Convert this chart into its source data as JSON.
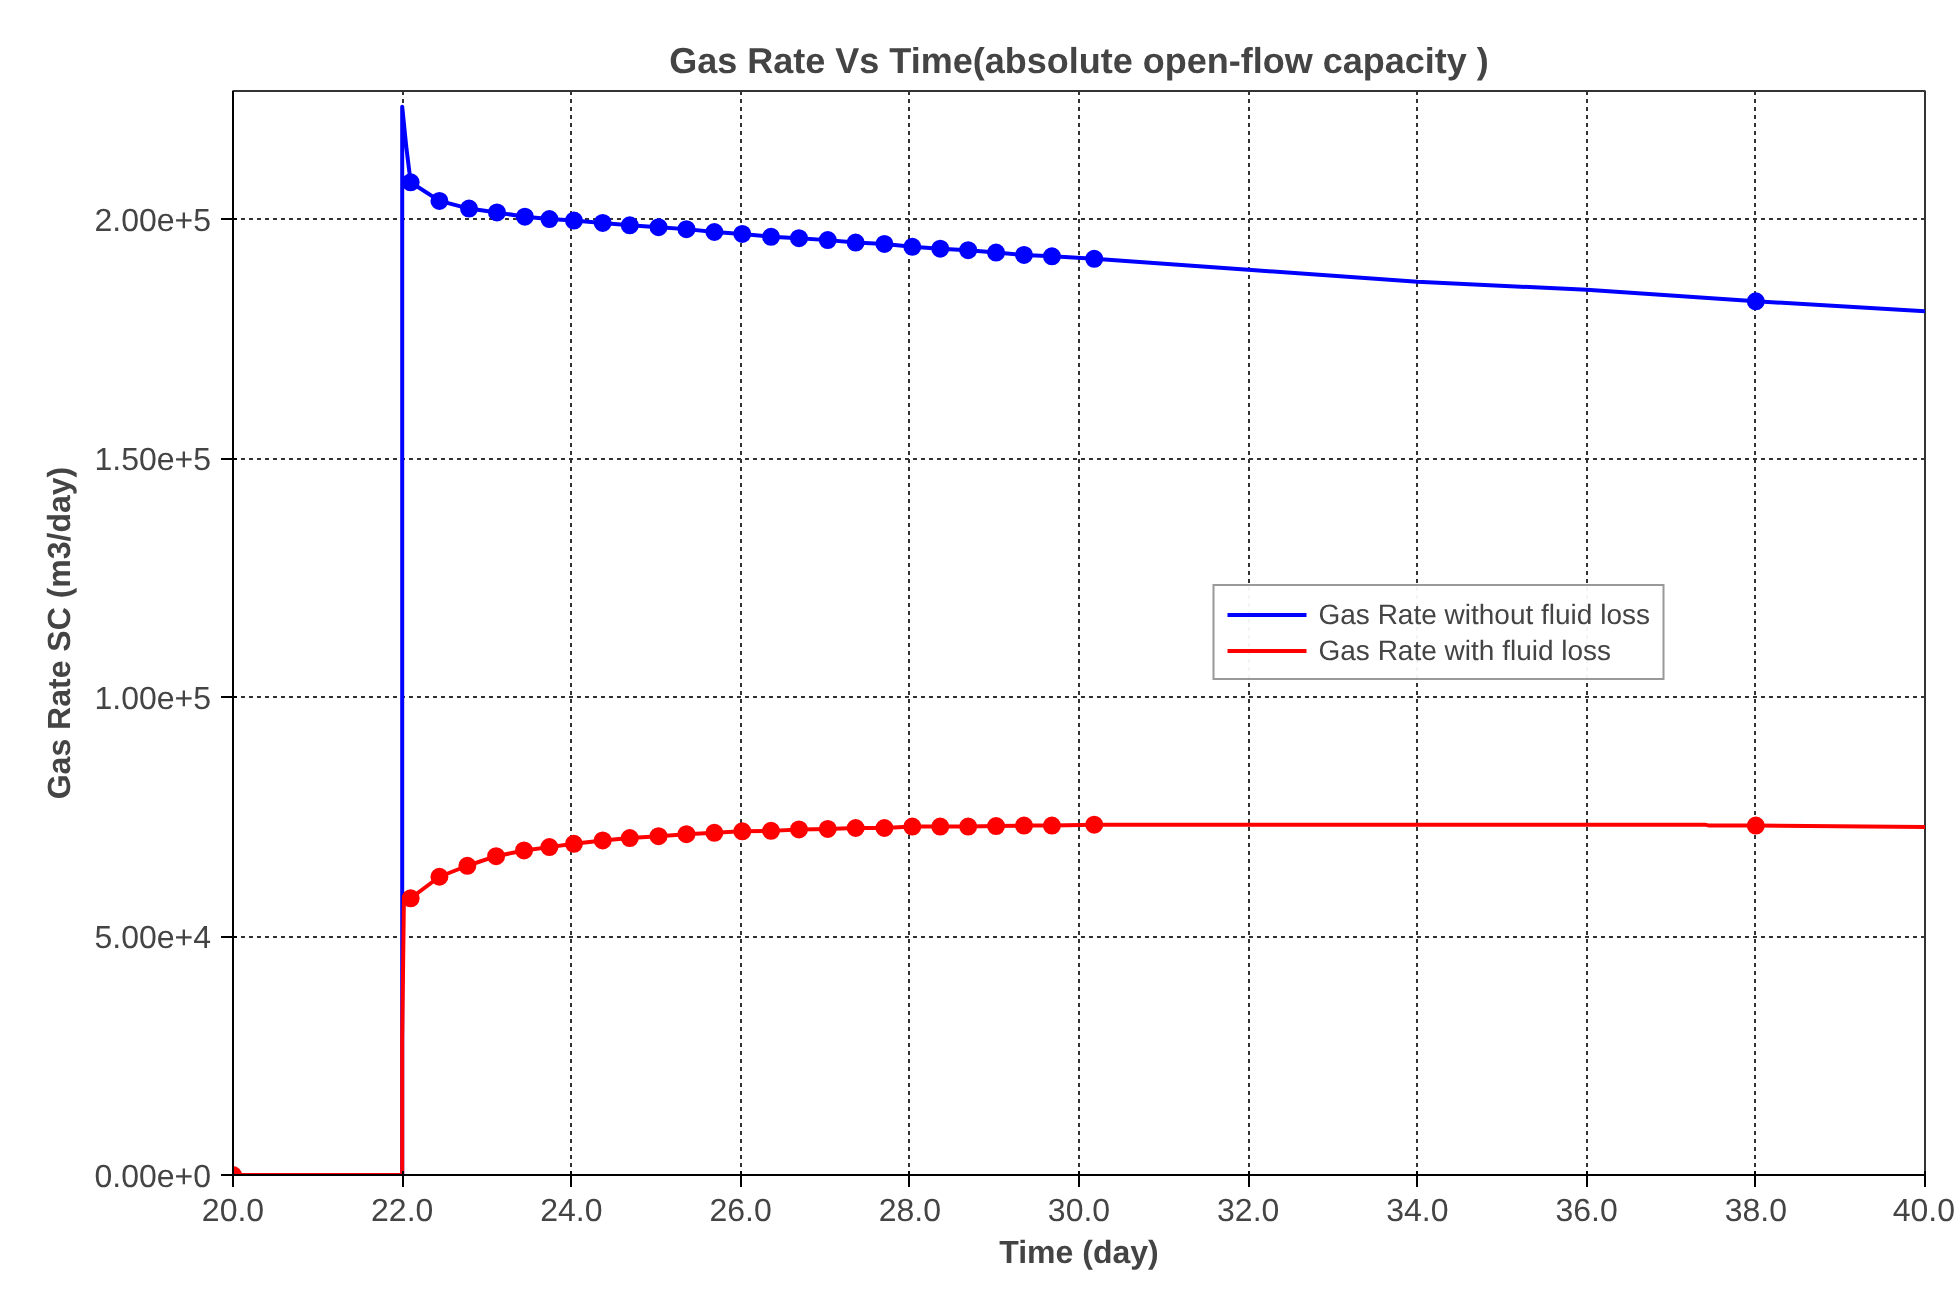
{
  "chart_data": {
    "type": "line",
    "title": "Gas Rate Vs Time(absolute open-flow capacity )",
    "xlabel": "Time (day)",
    "ylabel": "Gas Rate SC (m3/day)",
    "xlim": [
      20,
      40
    ],
    "ylim": [
      0,
      226800
    ],
    "xticks": [
      {
        "value": 20,
        "label": "20.0"
      },
      {
        "value": 22,
        "label": "22.0"
      },
      {
        "value": 24,
        "label": "24.0"
      },
      {
        "value": 26,
        "label": "26.0"
      },
      {
        "value": 28,
        "label": "28.0"
      },
      {
        "value": 30,
        "label": "30.0"
      },
      {
        "value": 32,
        "label": "32.0"
      },
      {
        "value": 34,
        "label": "34.0"
      },
      {
        "value": 36,
        "label": "36.0"
      },
      {
        "value": 38,
        "label": "38.0"
      },
      {
        "value": 40,
        "label": "40.0"
      }
    ],
    "yticks": [
      {
        "value": 0,
        "label": "0.00e+0"
      },
      {
        "value": 50000,
        "label": "5.00e+4"
      },
      {
        "value": 100000,
        "label": "1.00e+5"
      },
      {
        "value": 150000,
        "label": "1.50e+5"
      },
      {
        "value": 200000,
        "label": "2.00e+5"
      }
    ],
    "grid": true,
    "legend": "right",
    "line_style": "solid",
    "series": [
      {
        "name": "Gas Rate without fluid loss",
        "color": "#0000ff",
        "marker": "none",
        "x": [
          22.0,
          22.0,
          22.05,
          22.1,
          22.44,
          22.79,
          23.12,
          23.45,
          23.74,
          24.03,
          24.37,
          24.69,
          25.03,
          25.36,
          25.69,
          26.02,
          26.36,
          26.69,
          27.03,
          27.36,
          27.7,
          28.03,
          28.36,
          28.69,
          29.02,
          29.35,
          29.68,
          30.18,
          32,
          34,
          36,
          38,
          40
        ],
        "values": [
          0,
          223500,
          214800,
          207700,
          203800,
          202200,
          201400,
          200500,
          200000,
          199700,
          199200,
          198700,
          198300,
          197900,
          197300,
          196900,
          196300,
          196000,
          195600,
          195100,
          194800,
          194200,
          193800,
          193500,
          193000,
          192500,
          192200,
          191700,
          189400,
          186900,
          185200,
          182800,
          180700
        ]
      },
      {
        "color": "#0000ff",
        "type": "scatter",
        "marker": "circle",
        "x": [
          22.1,
          22.44,
          22.79,
          23.12,
          23.45,
          23.74,
          24.03,
          24.37,
          24.69,
          25.03,
          25.36,
          25.69,
          26.02,
          26.36,
          26.69,
          27.03,
          27.36,
          27.7,
          28.03,
          28.36,
          28.69,
          29.02,
          29.35,
          29.68,
          30.18,
          38
        ],
        "values": [
          207700,
          203800,
          202200,
          201400,
          200500,
          200000,
          199700,
          199200,
          198700,
          198300,
          197900,
          197300,
          196900,
          196300,
          196000,
          195600,
          195100,
          194800,
          194200,
          193800,
          193500,
          193000,
          192500,
          192200,
          191700,
          182800
        ]
      },
      {
        "name": "Gas Rate with fluid loss",
        "color": "#ff0000",
        "marker": "none",
        "x": [
          20,
          22.0,
          22.0,
          22.02,
          22.1,
          22.44,
          22.77,
          23.11,
          23.44,
          23.74,
          24.03,
          24.37,
          24.69,
          25.03,
          25.36,
          25.69,
          26.02,
          26.36,
          26.69,
          27.03,
          27.36,
          27.7,
          28.03,
          28.36,
          28.69,
          29.02,
          29.35,
          29.68,
          30.18,
          37.4,
          37.45,
          38,
          40
        ],
        "values": [
          0,
          0,
          28400,
          57500,
          57900,
          62400,
          64700,
          66700,
          67900,
          68600,
          69300,
          70000,
          70500,
          70900,
          71300,
          71600,
          71900,
          72000,
          72300,
          72400,
          72600,
          72600,
          72900,
          72900,
          72900,
          73000,
          73100,
          73100,
          73300,
          73300,
          73100,
          73100,
          72800
        ]
      },
      {
        "color": "#ff0000",
        "type": "scatter",
        "marker": "circle",
        "x": [
          20,
          22.1,
          22.44,
          22.77,
          23.11,
          23.44,
          23.74,
          24.03,
          24.37,
          24.69,
          25.03,
          25.36,
          25.69,
          26.02,
          26.36,
          26.69,
          27.03,
          27.36,
          27.7,
          28.03,
          28.36,
          28.69,
          29.02,
          29.35,
          29.68,
          30.18,
          38
        ],
        "values": [
          0,
          57900,
          62400,
          64700,
          66700,
          67900,
          68600,
          69300,
          70000,
          70500,
          70900,
          71300,
          71600,
          71900,
          72000,
          72300,
          72400,
          72600,
          72600,
          72900,
          72900,
          72900,
          73000,
          73100,
          73100,
          73300,
          73100
        ]
      }
    ]
  }
}
